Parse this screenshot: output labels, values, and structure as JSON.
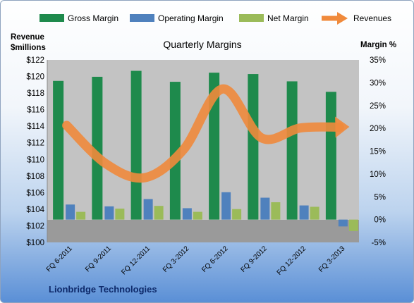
{
  "chart_data": {
    "type": "bar",
    "title": "Quarterly Margins",
    "footer": "Lionbridge Technologies",
    "left_axis": {
      "label_line1": "Revenue",
      "label_line2": "$millions",
      "min": 100,
      "max": 122,
      "step": 2,
      "tick_prefix": "$"
    },
    "right_axis": {
      "label": "Margin %",
      "min": -5,
      "max": 35,
      "step": 5,
      "tick_suffix": "%"
    },
    "categories": [
      "FQ 6-2011",
      "FQ 9-2011",
      "FQ 12-2011",
      "FQ 3-2012",
      "FQ 6-2012",
      "FQ 9-2012",
      "FQ 12-2012",
      "FQ 3-2013"
    ],
    "series": [
      {
        "name": "Gross Margin",
        "type": "bar",
        "axis": "right",
        "color": "#1e8a4c",
        "values": [
          30.4,
          31.3,
          32.6,
          30.2,
          32.2,
          31.9,
          30.3,
          28.0
        ]
      },
      {
        "name": "Operating Margin",
        "type": "bar",
        "axis": "right",
        "color": "#4f81bd",
        "values": [
          3.3,
          2.9,
          4.5,
          2.5,
          6.0,
          4.8,
          3.1,
          -1.5
        ]
      },
      {
        "name": "Net Margin",
        "type": "bar",
        "axis": "right",
        "color": "#9bbb59",
        "values": [
          1.7,
          2.4,
          3.0,
          1.7,
          2.3,
          3.8,
          2.8,
          -2.5
        ]
      },
      {
        "name": "Revenues",
        "type": "line",
        "axis": "left",
        "color": "#f08a3c",
        "values": [
          114.1,
          109.5,
          107.8,
          111.2,
          118.5,
          112.6,
          113.8,
          113.9
        ]
      }
    ],
    "legend_position": "top",
    "grid": false
  }
}
